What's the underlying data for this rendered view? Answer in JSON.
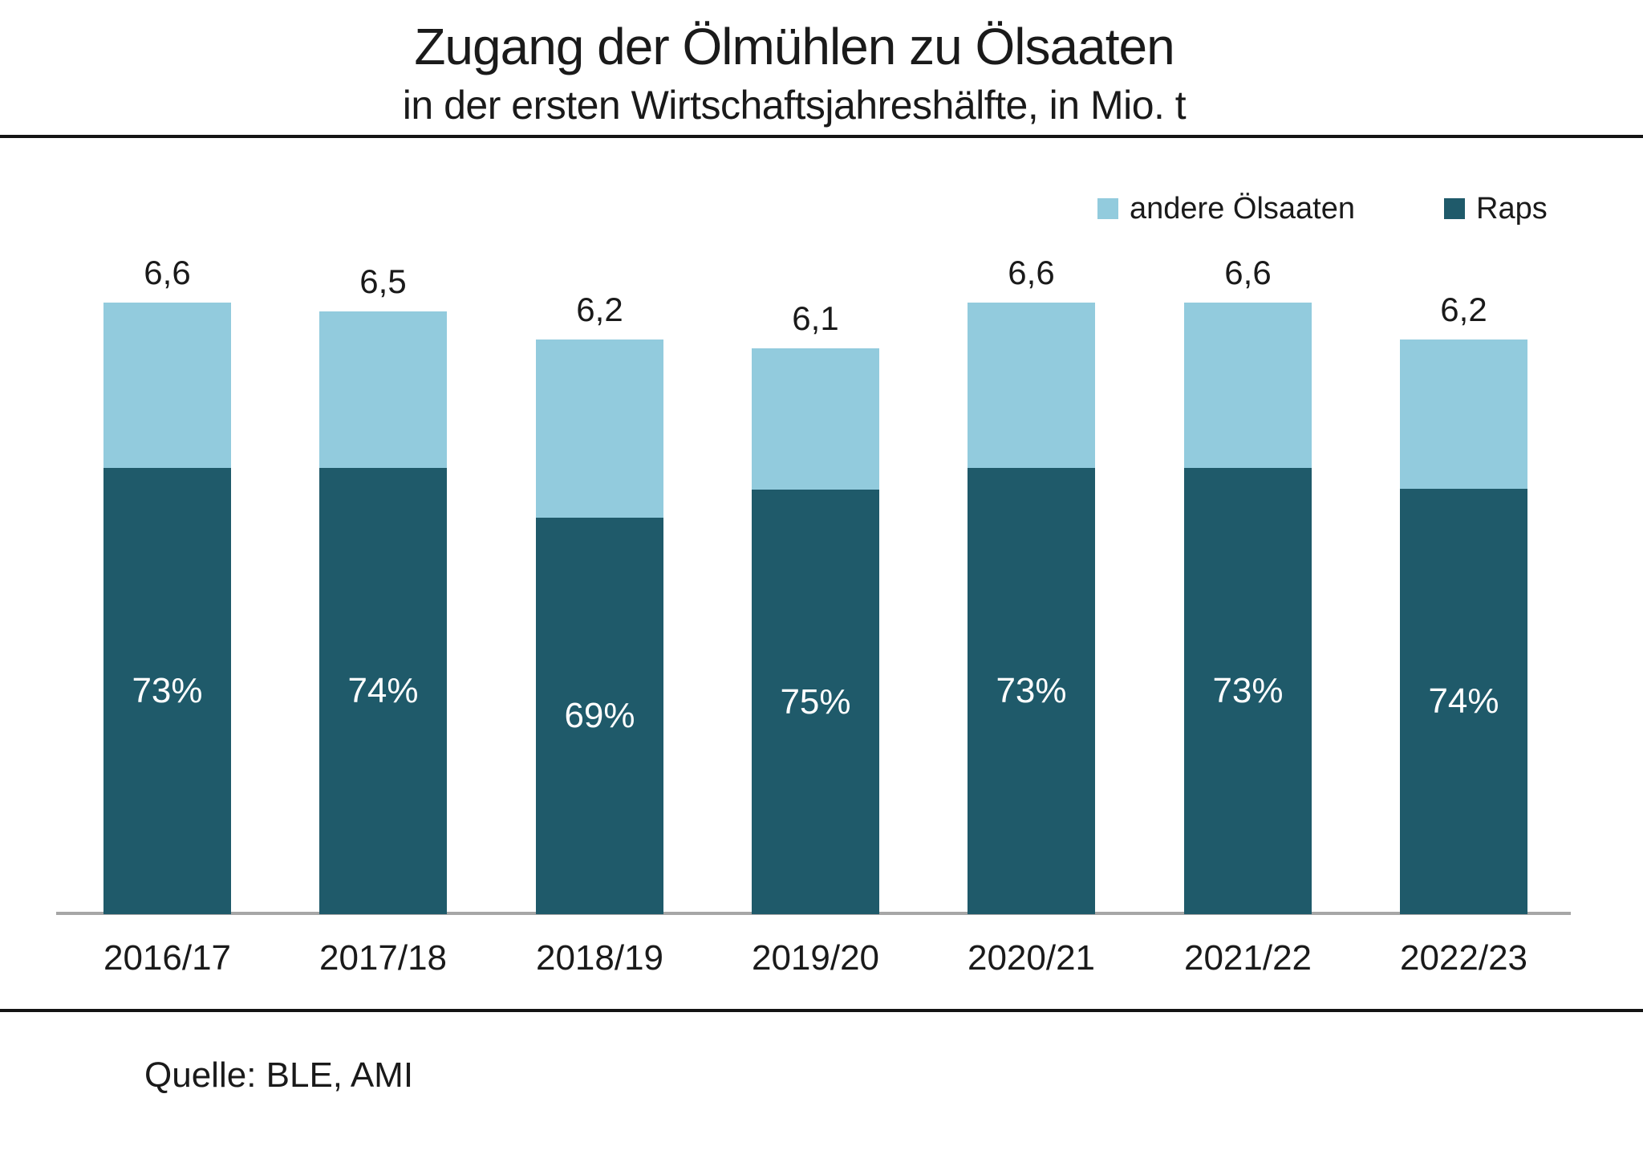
{
  "title": "Zugang der Ölmühlen zu Ölsaaten",
  "subtitle": "in der ersten Wirtschaftsjahreshälfte, in Mio. t",
  "source": "Quelle: BLE, AMI",
  "legend": [
    {
      "label": "andere Ölsaaten",
      "color": "#92CBDD"
    },
    {
      "label": "Raps",
      "color": "#1F5A6A"
    }
  ],
  "colors": {
    "raps": "#1F5A6A",
    "andere_oelsaaten": "#92CBDD",
    "axis_line": "#A6A6A6",
    "divider": "#141414",
    "label_text": "#1A1A1A",
    "pct_label_text": "#FFFFFF"
  },
  "chart_data": {
    "type": "bar",
    "stacked": true,
    "title": "Zugang der Ölmühlen zu Ölsaaten",
    "subtitle": "in der ersten Wirtschaftsjahreshälfte, in Mio. t",
    "unit": "Mio. t",
    "categories": [
      "2016/17",
      "2017/18",
      "2018/19",
      "2019/20",
      "2020/21",
      "2021/22",
      "2022/23"
    ],
    "totals": [
      6.6,
      6.5,
      6.2,
      6.1,
      6.6,
      6.6,
      6.2
    ],
    "total_labels": [
      "6,6",
      "6,5",
      "6,2",
      "6,1",
      "6,6",
      "6,6",
      "6,2"
    ],
    "series": [
      {
        "name": "Raps",
        "color": "#1F5A6A",
        "share_pct": [
          73,
          74,
          69,
          75,
          73,
          73,
          74
        ],
        "share_labels": [
          "73%",
          "74%",
          "69%",
          "75%",
          "73%",
          "73%",
          "74%"
        ]
      },
      {
        "name": "andere Ölsaaten",
        "color": "#92CBDD",
        "share_pct": [
          27,
          26,
          31,
          25,
          27,
          27,
          26
        ]
      }
    ],
    "legend_position": "top-right",
    "grid": false,
    "y_axis_visible": false,
    "value_labels": "totals above bars, Raps share (%) inside dark segment"
  }
}
